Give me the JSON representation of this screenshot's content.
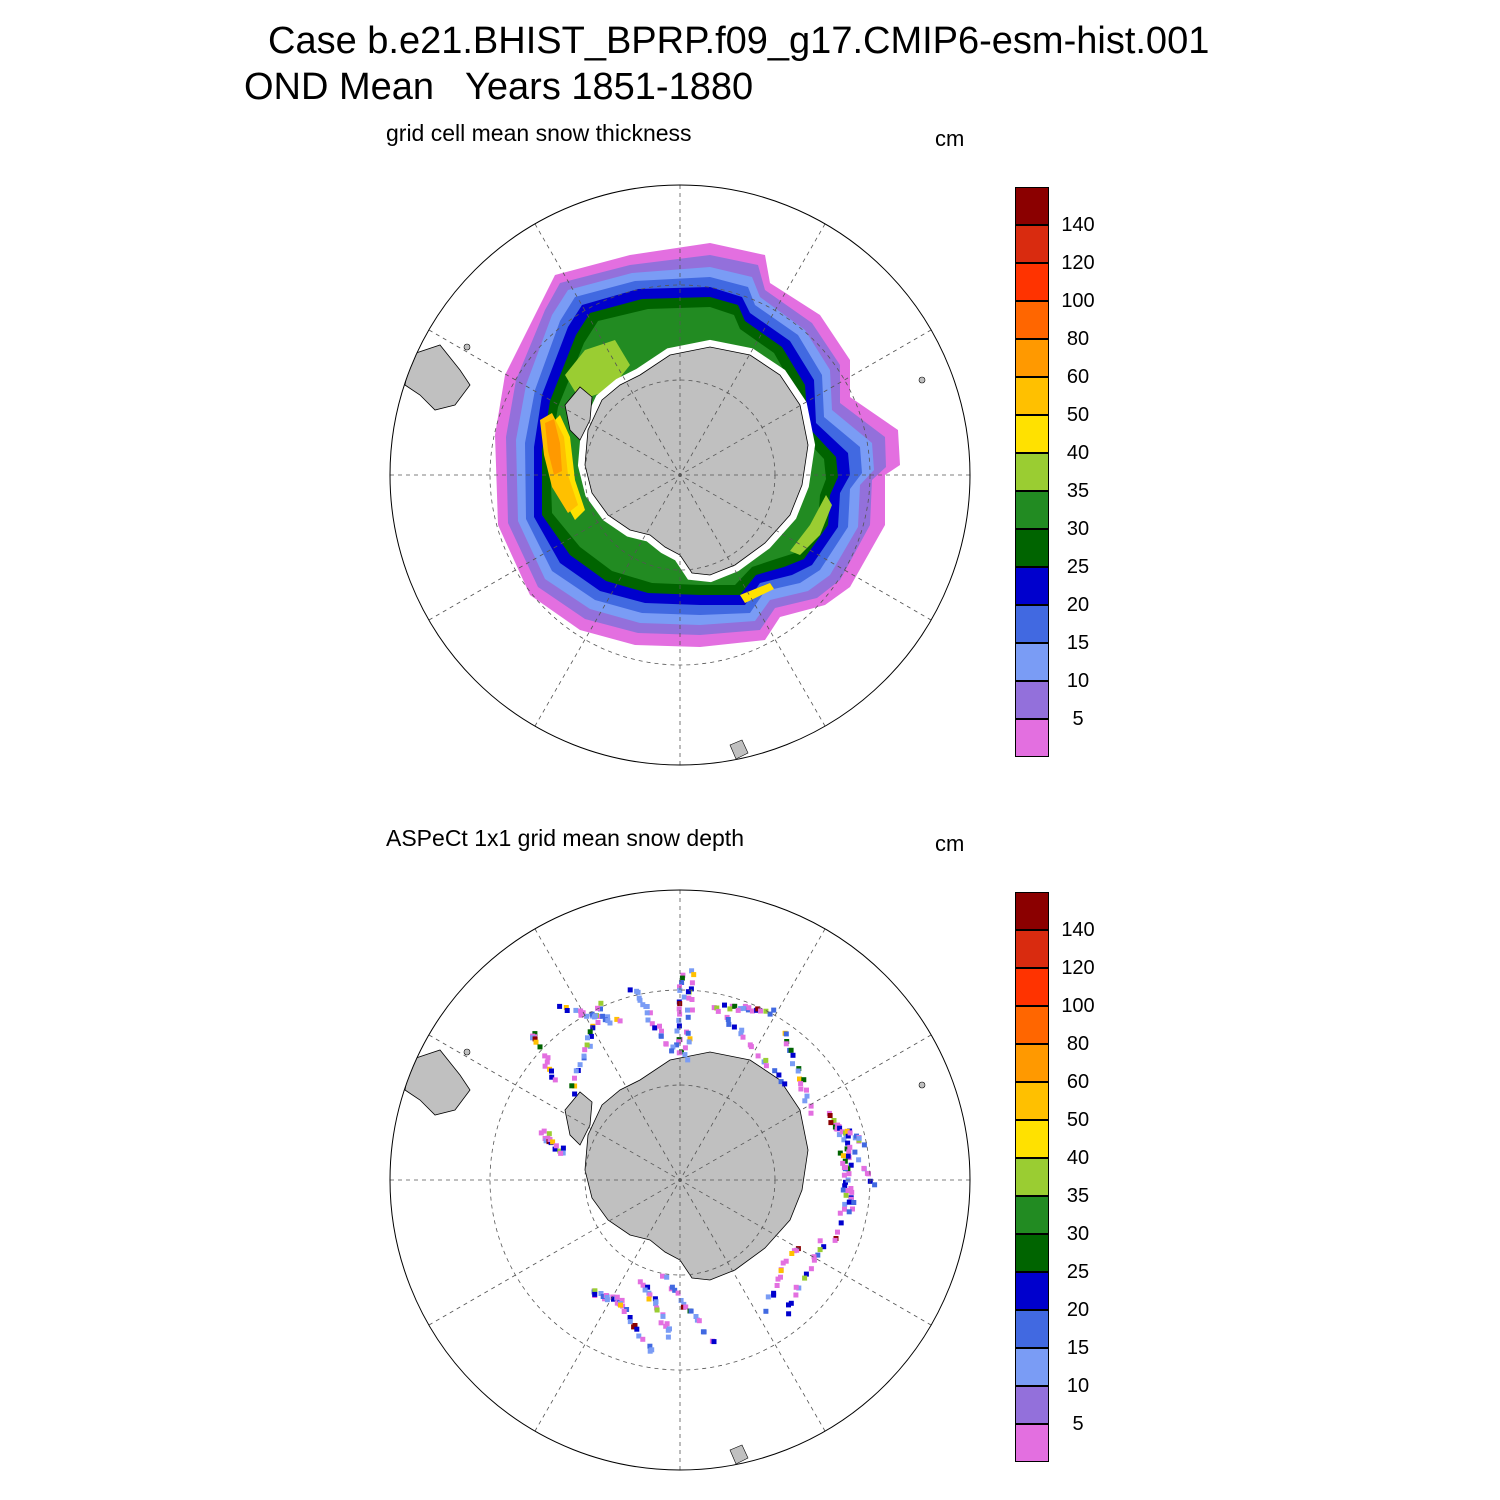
{
  "title": {
    "line1": "Case b.e21.BHIST_BPRP.f09_g17.CMIP6-esm-hist.001",
    "line2": "OND Mean   Years 1851-1880"
  },
  "panels": [
    {
      "title": "grid cell mean snow thickness",
      "units": "cm"
    },
    {
      "title": "ASPeCt 1x1 grid mean snow depth",
      "units": "cm"
    }
  ],
  "colorbar": {
    "levels": [
      "5",
      "10",
      "15",
      "20",
      "25",
      "30",
      "35",
      "40",
      "50",
      "60",
      "80",
      "100",
      "120",
      "140"
    ],
    "colors": [
      "#e36fe0",
      "#9370db",
      "#7a9cf5",
      "#4169e1",
      "#0000cd",
      "#006400",
      "#228b22",
      "#9acd32",
      "#ffe100",
      "#ffc000",
      "#ff9900",
      "#ff6600",
      "#ff3300",
      "#d92b0f",
      "#8b0000"
    ]
  },
  "map_style": {
    "land_color": "#c0c0c0",
    "grid_line_color": "#555555",
    "projection": "south polar stereographic"
  }
}
